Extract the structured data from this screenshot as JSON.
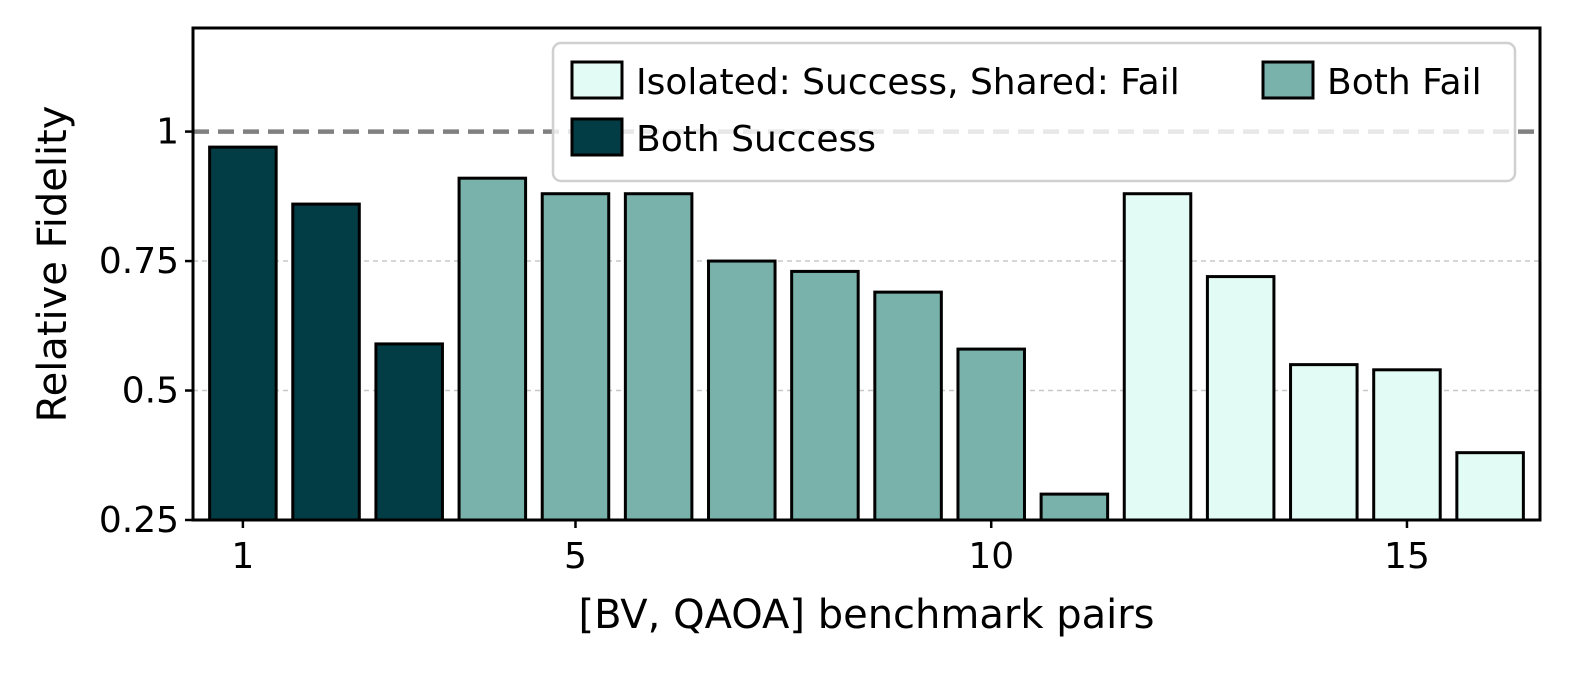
{
  "chart_data": {
    "type": "bar",
    "xlabel": "[BV, QAOA] benchmark pairs",
    "ylabel": "Relative Fidelity",
    "ylim": [
      0.25,
      1.2
    ],
    "yticks": [
      0.25,
      0.5,
      0.75,
      1
    ],
    "ytick_labels": [
      "0.25",
      "0.5",
      "0.75",
      "1"
    ],
    "xticks": [
      1,
      5,
      10,
      15
    ],
    "xtick_labels": [
      "1",
      "5",
      "10",
      "15"
    ],
    "reference_line": 1,
    "grid": "horizontal-dashed",
    "legend_position": "top-right",
    "colors": {
      "both_success": "#023c45",
      "both_fail": "#79b1ab",
      "isolated_success_shared_fail": "#e2fbf5",
      "edge": "#000000",
      "reference": "#808080",
      "grid": "#c8c8c8"
    },
    "legend": [
      {
        "key": "isolated_success_shared_fail",
        "label": "Isolated: Success, Shared: Fail"
      },
      {
        "key": "both_fail",
        "label": "Both Fail"
      },
      {
        "key": "both_success",
        "label": "Both Success"
      }
    ],
    "pairs": [
      1,
      2,
      3,
      4,
      5,
      6,
      7,
      8,
      9,
      10,
      11,
      12,
      13,
      14,
      15,
      16
    ],
    "values": [
      0.97,
      0.86,
      0.59,
      0.91,
      0.88,
      0.88,
      0.75,
      0.73,
      0.69,
      0.58,
      0.3,
      0.88,
      0.72,
      0.55,
      0.54,
      0.38
    ],
    "categories": [
      "both_success",
      "both_success",
      "both_success",
      "both_fail",
      "both_fail",
      "both_fail",
      "both_fail",
      "both_fail",
      "both_fail",
      "both_fail",
      "both_fail",
      "isolated_success_shared_fail",
      "isolated_success_shared_fail",
      "isolated_success_shared_fail",
      "isolated_success_shared_fail",
      "isolated_success_shared_fail"
    ]
  }
}
